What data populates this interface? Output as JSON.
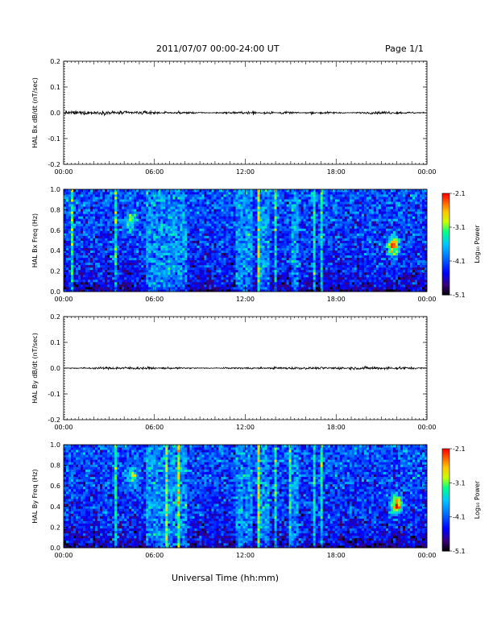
{
  "header": {
    "title": "2011/07/07  00:00-24:00 UT",
    "page": "Page 1/1"
  },
  "footer": {
    "xlabel": "Universal Time (hh:mm)"
  },
  "colors": {
    "trace": "#000000",
    "colormap": [
      "#000000",
      "#3a0078",
      "#0000ff",
      "#00c8ff",
      "#00ff8c",
      "#c8ff00",
      "#ffa000",
      "#ff0000"
    ]
  },
  "chart_data": [
    {
      "type": "line",
      "title": "",
      "ylabel": "HAL Bx dB/dt (nT/sec)",
      "xlabel": "",
      "xlim": [
        "00:00",
        "24:00"
      ],
      "ylim": [
        -0.2,
        0.2
      ],
      "x_ticks": [
        "00:00",
        "06:00",
        "12:00",
        "18:00",
        "00:00"
      ],
      "y_ticks": [
        "-0.2",
        "-0.1",
        "0.0",
        "0.1",
        "0.2"
      ],
      "series": [
        {
          "x": [
            "00:00",
            "00:10",
            "05:30",
            "05:45",
            "06:00",
            "06:45",
            "07:30",
            "11:45",
            "12:15",
            "12:30",
            "13:15",
            "13:45",
            "14:30",
            "16:30",
            "17:00",
            "20:45",
            "21:30",
            "22:00",
            "24:00"
          ],
          "values": [
            0.0,
            0.005,
            0.004,
            0.006,
            -0.004,
            0.003,
            -0.003,
            0.003,
            -0.004,
            0.005,
            -0.004,
            0.004,
            -0.004,
            0.003,
            -0.003,
            0.003,
            0.004,
            -0.003,
            0.0
          ]
        }
      ]
    },
    {
      "type": "heatmap",
      "title": "",
      "ylabel": "HAL Bx Freq (Hz)",
      "xlabel": "",
      "xlim": [
        "00:00",
        "24:00"
      ],
      "ylim": [
        0.0,
        1.0
      ],
      "x_ticks": [
        "00:00",
        "06:00",
        "12:00",
        "18:00",
        "00:00"
      ],
      "y_ticks": [
        "0.0",
        "0.2",
        "0.4",
        "0.6",
        "0.8",
        "1.0"
      ],
      "colorbar": {
        "label": "Log₁₀ Power",
        "range": [
          -5.1,
          -2.1
        ],
        "ticks": [
          "-2.1",
          "-3.1",
          "-4.1",
          "-5.1"
        ]
      },
      "features": {
        "spike_times_hr": [
          0.6,
          3.5,
          12.9,
          14.0,
          16.5,
          17.1
        ],
        "broadband_hr": [
          [
            5.5,
            8.2
          ],
          [
            11.3,
            12.5
          ],
          [
            12.8,
            13.6
          ],
          [
            15.0,
            15.6
          ]
        ],
        "hotspots": [
          {
            "t_hr": 4.5,
            "f_hz": 0.7,
            "level": -3.2
          },
          {
            "t_hr": 21.8,
            "f_hz": 0.45,
            "level": -2.2
          }
        ]
      }
    },
    {
      "type": "line",
      "title": "",
      "ylabel": "HAL By dB/dt (nT/sec)",
      "xlabel": "",
      "xlim": [
        "00:00",
        "24:00"
      ],
      "ylim": [
        -0.2,
        0.2
      ],
      "x_ticks": [
        "00:00",
        "06:00",
        "12:00",
        "18:00",
        "00:00"
      ],
      "y_ticks": [
        "-0.2",
        "-0.1",
        "0.0",
        "0.1",
        "0.2"
      ],
      "series": [
        {
          "x": [
            "00:00",
            "03:30",
            "05:45",
            "06:30",
            "12:30",
            "13:00",
            "14:00",
            "16:30",
            "21:30",
            "22:00",
            "24:00"
          ],
          "values": [
            0.0,
            0.003,
            0.003,
            -0.002,
            0.002,
            -0.002,
            0.003,
            0.002,
            0.004,
            -0.004,
            0.0
          ]
        }
      ]
    },
    {
      "type": "heatmap",
      "title": "",
      "ylabel": "HAL By Freq (Hz)",
      "xlabel": "",
      "xlim": [
        "00:00",
        "24:00"
      ],
      "ylim": [
        0.0,
        1.0
      ],
      "x_ticks": [
        "00:00",
        "06:00",
        "12:00",
        "18:00",
        "00:00"
      ],
      "y_ticks": [
        "0.0",
        "0.2",
        "0.4",
        "0.6",
        "0.8",
        "1.0"
      ],
      "colorbar": {
        "label": "Log₁₀ Power",
        "range": [
          -5.1,
          -2.1
        ],
        "ticks": [
          "-2.1",
          "-3.1",
          "-4.1",
          "-5.1"
        ]
      },
      "features": {
        "spike_times_hr": [
          3.5,
          6.8,
          7.6,
          12.9,
          14.0,
          15.0,
          16.5,
          17.1
        ],
        "broadband_hr": [
          [
            5.5,
            8.2
          ],
          [
            11.3,
            12.5
          ],
          [
            12.8,
            13.6
          ],
          [
            15.0,
            15.6
          ]
        ],
        "hotspots": [
          {
            "t_hr": 4.5,
            "f_hz": 0.7,
            "level": -3.2
          },
          {
            "t_hr": 22.0,
            "f_hz": 0.42,
            "level": -2.2
          }
        ]
      }
    }
  ]
}
